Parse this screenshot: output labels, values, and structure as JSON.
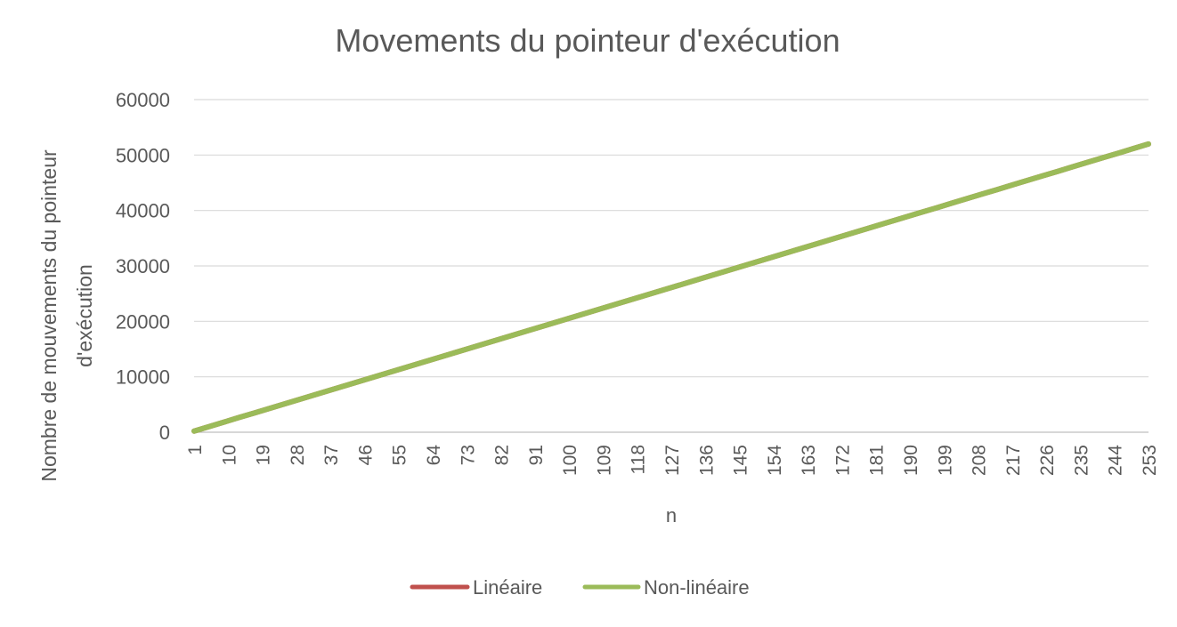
{
  "chart_data": {
    "type": "line",
    "title": "Movements du pointeur d'exécution",
    "xlabel": "n",
    "ylabel_lines": [
      "Nombre de mouvements du pointeur",
      "d'exécution"
    ],
    "x_start": 1,
    "x_end": 253,
    "x_tick_labels": [
      "1",
      "10",
      "19",
      "28",
      "37",
      "46",
      "55",
      "64",
      "73",
      "82",
      "91",
      "100",
      "109",
      "118",
      "127",
      "136",
      "145",
      "154",
      "163",
      "172",
      "181",
      "190",
      "199",
      "208",
      "217",
      "226",
      "235",
      "244",
      "253"
    ],
    "ylim": [
      0,
      60000
    ],
    "y_ticks": [
      0,
      10000,
      20000,
      30000,
      40000,
      50000,
      60000
    ],
    "y_tick_labels": [
      "0",
      "10000",
      "20000",
      "30000",
      "40000",
      "50000",
      "60000"
    ],
    "grid": true,
    "legend_position": "bottom",
    "series": [
      {
        "name": "Linéaire",
        "color": "#c0504d",
        "slope": 205.5,
        "intercept": 0,
        "points": [
          [
            1,
            200
          ],
          [
            253,
            52000
          ]
        ]
      },
      {
        "name": "Non-linéaire",
        "color": "#9bbb59",
        "slope": 205.5,
        "intercept": 0,
        "points": [
          [
            1,
            200
          ],
          [
            253,
            52000
          ]
        ]
      }
    ]
  }
}
